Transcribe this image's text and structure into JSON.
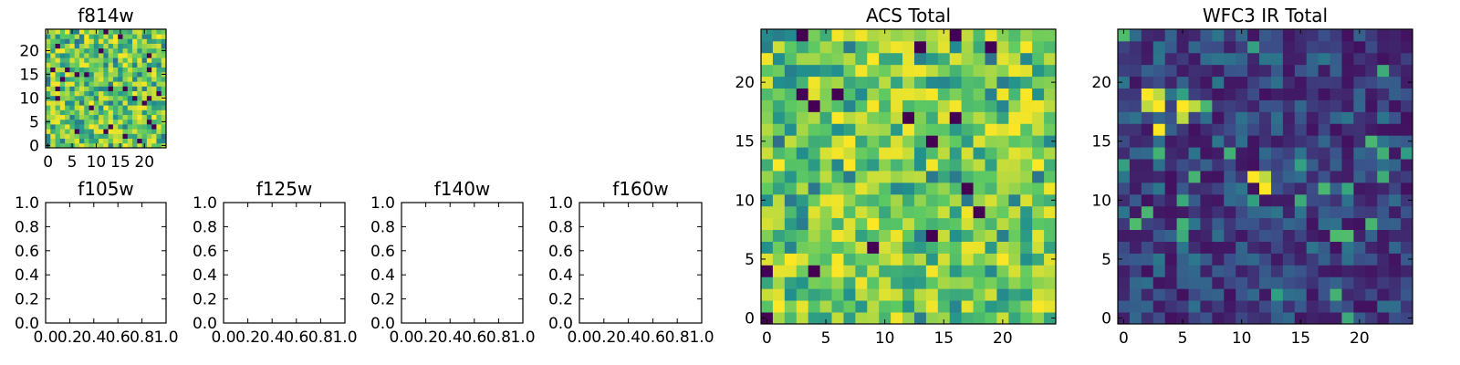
{
  "colormap": [
    "#440154",
    "#3b528b",
    "#21908d",
    "#5dc963",
    "#fde725"
  ],
  "chart_data": [
    {
      "type": "heatmap",
      "title": "f814w",
      "xlim": [
        -0.5,
        24.5
      ],
      "ylim": [
        -0.5,
        24.5
      ],
      "xticks": [
        0,
        5,
        10,
        15,
        20
      ],
      "yticks": [
        0,
        5,
        10,
        15,
        20
      ],
      "xtick_labels": [
        "0",
        "5",
        "10",
        "15",
        "20"
      ],
      "ytick_labels": [
        "0",
        "5",
        "10",
        "15",
        "20"
      ],
      "grid_size": [
        25,
        25
      ],
      "value_range": [
        0,
        1
      ],
      "pattern": "noise",
      "seed": 814
    },
    {
      "type": "empty",
      "title": "f105w",
      "xlim": [
        0,
        1
      ],
      "ylim": [
        0,
        1
      ],
      "xticks": [
        0,
        0.2,
        0.4,
        0.6,
        0.8,
        1.0
      ],
      "yticks": [
        0,
        0.2,
        0.4,
        0.6,
        0.8,
        1.0
      ],
      "xtick_labels": [
        "0.0",
        "0.2",
        "0.4",
        "0.6",
        "0.8",
        "1.0"
      ],
      "ytick_labels": [
        "0.0",
        "0.2",
        "0.4",
        "0.6",
        "0.8",
        "1.0"
      ]
    },
    {
      "type": "empty",
      "title": "f125w",
      "xlim": [
        0,
        1
      ],
      "ylim": [
        0,
        1
      ],
      "xticks": [
        0,
        0.2,
        0.4,
        0.6,
        0.8,
        1.0
      ],
      "yticks": [
        0,
        0.2,
        0.4,
        0.6,
        0.8,
        1.0
      ],
      "xtick_labels": [
        "0.0",
        "0.2",
        "0.4",
        "0.6",
        "0.8",
        "1.0"
      ],
      "ytick_labels": [
        "0.0",
        "0.2",
        "0.4",
        "0.6",
        "0.8",
        "1.0"
      ]
    },
    {
      "type": "empty",
      "title": "f140w",
      "xlim": [
        0,
        1
      ],
      "ylim": [
        0,
        1
      ],
      "xticks": [
        0,
        0.2,
        0.4,
        0.6,
        0.8,
        1.0
      ],
      "yticks": [
        0,
        0.2,
        0.4,
        0.6,
        0.8,
        1.0
      ],
      "xtick_labels": [
        "0.0",
        "0.2",
        "0.4",
        "0.6",
        "0.8",
        "1.0"
      ],
      "ytick_labels": [
        "0.0",
        "0.2",
        "0.4",
        "0.6",
        "0.8",
        "1.0"
      ]
    },
    {
      "type": "empty",
      "title": "f160w",
      "xlim": [
        0,
        1
      ],
      "ylim": [
        0,
        1
      ],
      "xticks": [
        0,
        0.2,
        0.4,
        0.6,
        0.8,
        1.0
      ],
      "yticks": [
        0,
        0.2,
        0.4,
        0.6,
        0.8,
        1.0
      ],
      "xtick_labels": [
        "0.0",
        "0.2",
        "0.4",
        "0.6",
        "0.8",
        "1.0"
      ],
      "ytick_labels": [
        "0.0",
        "0.2",
        "0.4",
        "0.6",
        "0.8",
        "1.0"
      ]
    },
    {
      "type": "heatmap",
      "title": "ACS Total",
      "xlim": [
        -0.5,
        24.5
      ],
      "ylim": [
        -0.5,
        24.5
      ],
      "xticks": [
        0,
        5,
        10,
        15,
        20
      ],
      "yticks": [
        0,
        5,
        10,
        15,
        20
      ],
      "xtick_labels": [
        "0",
        "5",
        "10",
        "15",
        "20"
      ],
      "ytick_labels": [
        "0",
        "5",
        "10",
        "15",
        "20"
      ],
      "grid_size": [
        25,
        25
      ],
      "value_range": [
        0,
        1
      ],
      "pattern": "noise",
      "seed": 2024
    },
    {
      "type": "heatmap",
      "title": "WFC3 IR Total",
      "xlim": [
        -0.5,
        24.5
      ],
      "ylim": [
        -0.5,
        24.5
      ],
      "xticks": [
        0,
        5,
        10,
        15,
        20
      ],
      "yticks": [
        0,
        5,
        10,
        15,
        20
      ],
      "xtick_labels": [
        "0",
        "5",
        "10",
        "15",
        "20"
      ],
      "ytick_labels": [
        "0",
        "5",
        "10",
        "15",
        "20"
      ],
      "grid_size": [
        25,
        25
      ],
      "value_range": [
        0,
        1
      ],
      "pattern": "low-noise-with-hotspots",
      "seed": 3,
      "hot_pixels": [
        [
          2,
          18
        ],
        [
          2,
          19
        ],
        [
          3,
          18
        ],
        [
          3,
          19
        ],
        [
          5,
          17
        ],
        [
          5,
          18
        ],
        [
          6,
          18
        ],
        [
          3,
          16
        ],
        [
          11,
          12
        ],
        [
          12,
          12
        ],
        [
          12,
          11
        ]
      ]
    }
  ]
}
